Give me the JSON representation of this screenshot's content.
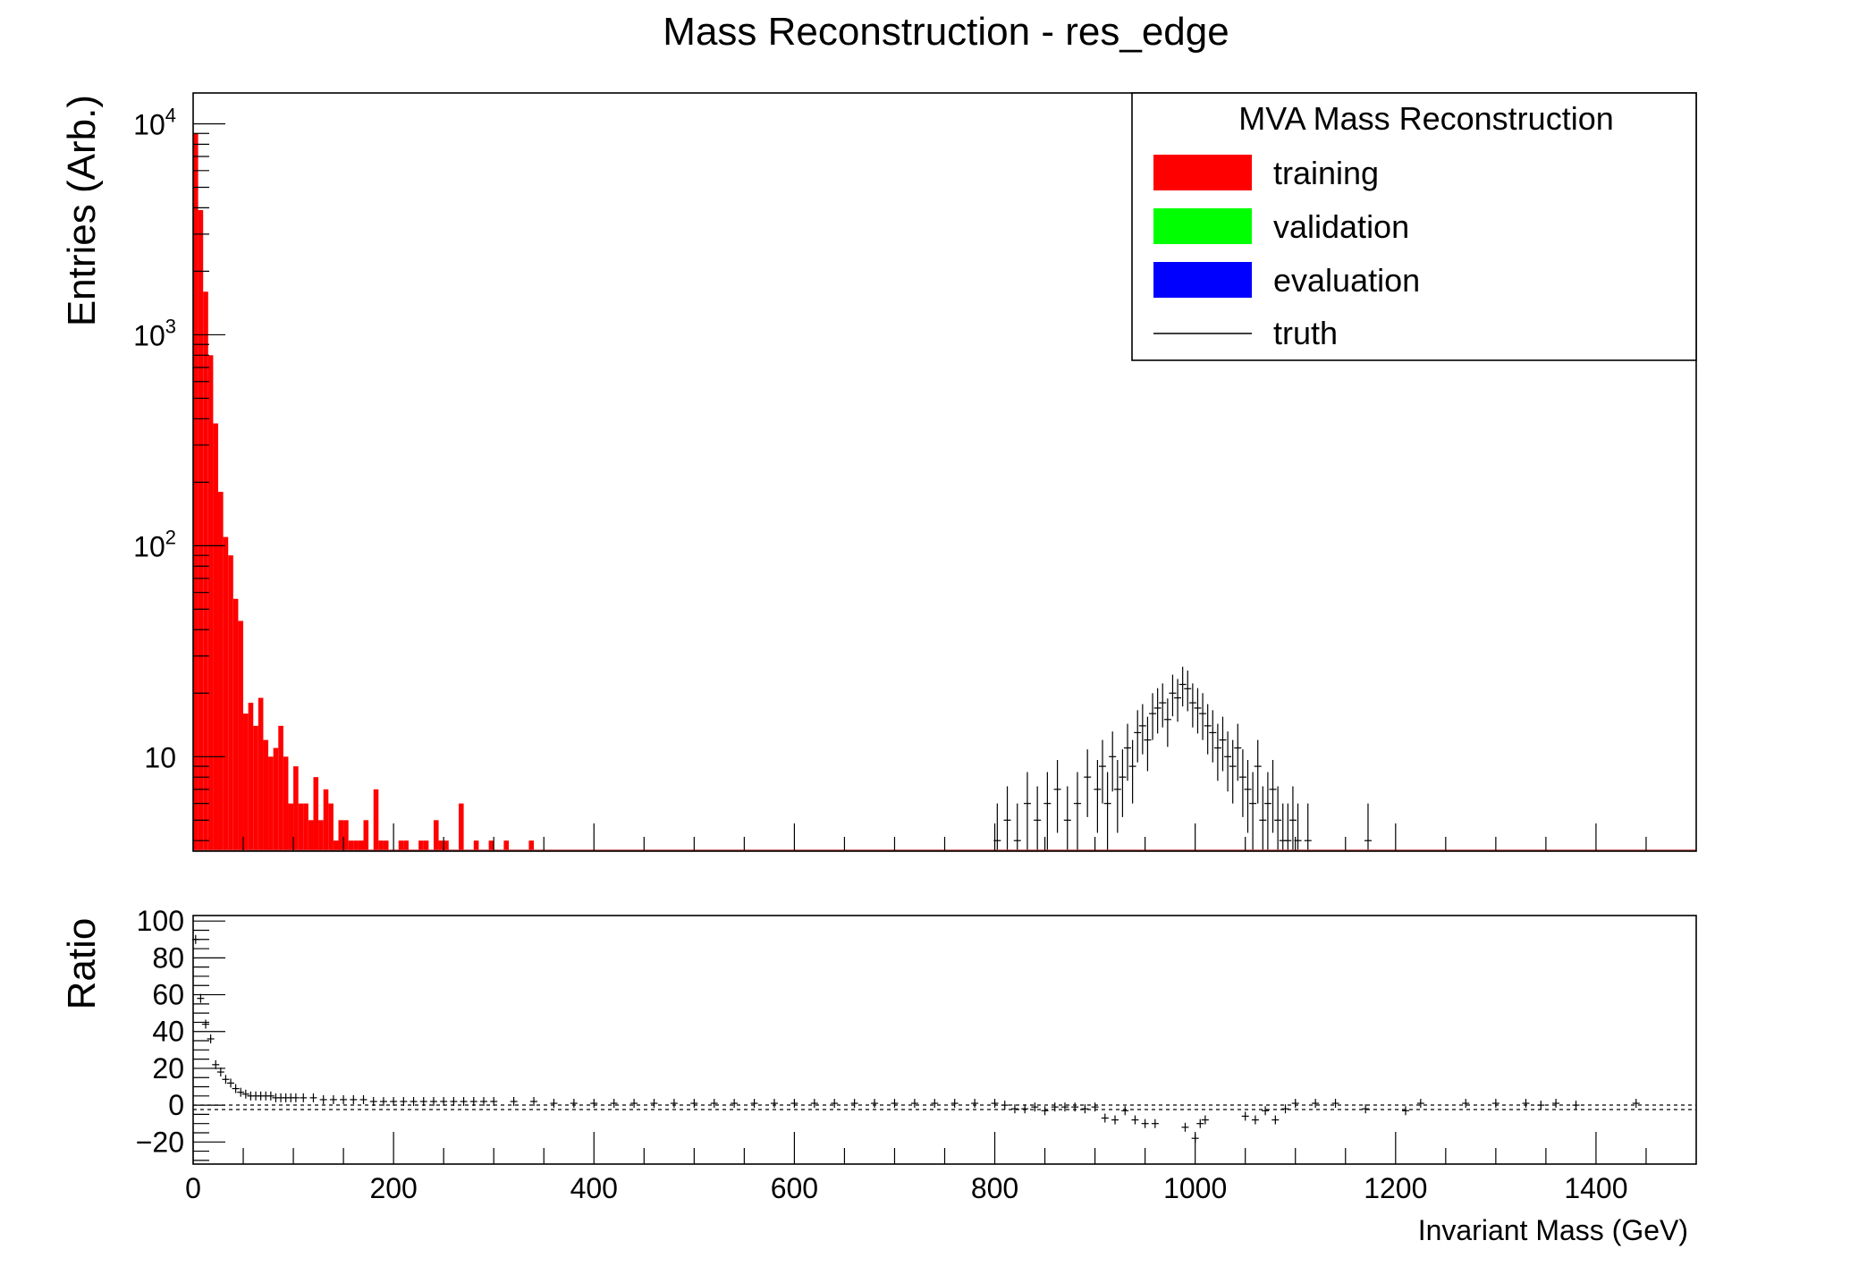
{
  "chart_data": [
    {
      "type": "bar",
      "title": "Mass Reconstruction - res_edge",
      "ylabel": "Entries (Arb.)",
      "xlabel": "",
      "log_y": true,
      "ylim": [
        3.6,
        14000
      ],
      "xlim": [
        0,
        1500
      ],
      "y_tick_labels": [
        {
          "value": 10000,
          "base": "10",
          "exp": "4"
        },
        {
          "value": 1000,
          "base": "10",
          "exp": "3"
        },
        {
          "value": 100,
          "base": "10",
          "exp": "2"
        },
        {
          "value": 10,
          "base": "10",
          "exp": ""
        }
      ],
      "legend": {
        "title": "MVA Mass Reconstruction",
        "position": "top-right",
        "entries": [
          {
            "label": "training",
            "style": "fill",
            "color": "#ff0000"
          },
          {
            "label": "validation",
            "style": "fill",
            "color": "#00ff00"
          },
          {
            "label": "evaluation",
            "style": "fill",
            "color": "#0000ff"
          },
          {
            "label": "truth",
            "style": "line",
            "color": "#000000"
          }
        ]
      },
      "series": [
        {
          "name": "training",
          "color": "#ff0000",
          "bin_width": 5,
          "x": [
            0,
            5,
            10,
            15,
            20,
            25,
            30,
            35,
            40,
            45,
            50,
            55,
            60,
            65,
            70,
            75,
            80,
            85,
            90,
            95,
            100,
            105,
            110,
            115,
            120,
            125,
            130,
            135,
            140,
            145,
            150,
            155,
            160,
            165,
            170,
            175,
            180,
            185,
            190,
            195,
            200,
            205,
            210,
            215,
            220,
            225,
            230,
            235,
            240,
            245,
            250,
            255,
            260,
            265,
            270,
            275,
            280,
            285,
            290,
            295,
            300,
            305,
            310,
            315,
            320,
            325,
            330,
            335,
            340,
            345,
            350,
            355,
            360,
            365,
            370,
            375,
            380,
            385,
            390,
            395,
            400,
            405,
            410,
            415,
            420,
            425,
            430,
            435,
            440,
            445,
            450,
            455,
            460,
            465,
            470,
            475,
            480,
            485,
            490,
            495,
            500,
            505,
            510,
            515,
            520,
            525,
            530,
            535,
            540,
            545,
            550,
            555,
            560,
            565,
            570
          ],
          "values": [
            9000,
            3900,
            1600,
            800,
            380,
            180,
            110,
            90,
            56,
            44,
            16,
            18,
            14,
            19,
            12,
            10,
            11,
            14,
            10,
            6,
            9,
            6,
            6,
            5,
            8,
            5,
            7,
            6,
            4,
            5,
            5,
            4,
            4,
            4,
            5,
            3,
            7,
            4,
            4,
            3,
            3,
            4,
            4,
            3,
            3,
            4,
            4,
            3,
            5,
            4,
            4,
            3,
            3,
            6,
            3,
            3,
            4,
            3,
            3,
            4,
            3,
            3,
            4,
            3,
            3,
            3,
            3,
            4,
            3,
            3,
            3,
            3,
            3,
            3,
            3,
            3,
            3,
            3,
            3,
            3,
            3,
            3,
            3,
            3,
            3,
            3,
            3,
            3,
            3,
            3,
            3,
            3,
            3,
            3,
            3,
            3,
            3,
            3,
            3,
            3,
            3,
            3,
            3,
            3,
            3,
            3,
            3,
            3,
            3,
            3,
            3,
            3,
            3,
            3,
            3
          ]
        },
        {
          "name": "truth",
          "color": "#000000",
          "bin_width": 5,
          "x": [
            800,
            810,
            820,
            830,
            840,
            850,
            860,
            870,
            880,
            890,
            900,
            905,
            910,
            915,
            920,
            925,
            930,
            935,
            940,
            945,
            950,
            955,
            960,
            965,
            970,
            975,
            980,
            985,
            990,
            995,
            1000,
            1005,
            1010,
            1015,
            1020,
            1025,
            1030,
            1035,
            1040,
            1045,
            1050,
            1055,
            1060,
            1065,
            1070,
            1075,
            1080,
            1085,
            1090,
            1095,
            1100,
            1110,
            1170
          ],
          "values": [
            4,
            5,
            4,
            6,
            5,
            6,
            7,
            5,
            6,
            8,
            7,
            9,
            6,
            10,
            7,
            8,
            11,
            9,
            13,
            14,
            12,
            16,
            17,
            18,
            15,
            20,
            19,
            22,
            21,
            18,
            17,
            16,
            14,
            13,
            11,
            12,
            10,
            9,
            11,
            8,
            7,
            6,
            9,
            5,
            6,
            7,
            5,
            4,
            4,
            5,
            4,
            4,
            4
          ]
        }
      ]
    },
    {
      "type": "scatter",
      "xlabel": "Invariant Mass (GeV)",
      "ylabel": "Ratio",
      "xlim": [
        0,
        1500
      ],
      "ylim": [
        -32,
        103
      ],
      "x_tick_labels": [
        "0",
        "200",
        "400",
        "600",
        "800",
        "1000",
        "1200",
        "1400"
      ],
      "y_tick_labels": [
        "100",
        "80",
        "60",
        "40",
        "20",
        "0",
        "−20"
      ],
      "reference_line": 0,
      "series": [
        {
          "name": "",
          "color": "#000000",
          "x": [
            2.5,
            7.5,
            12.5,
            17.5,
            22.5,
            27.5,
            32.5,
            37.5,
            42.5,
            47.5,
            52.5,
            57.5,
            62.5,
            67.5,
            72.5,
            77.5,
            82.5,
            87.5,
            92.5,
            97.5,
            102.5,
            110,
            120,
            130,
            140,
            150,
            160,
            170,
            180,
            190,
            200,
            210,
            220,
            230,
            240,
            250,
            260,
            270,
            280,
            290,
            300,
            320,
            340,
            360,
            380,
            400,
            420,
            440,
            460,
            480,
            500,
            520,
            540,
            560,
            580,
            600,
            620,
            640,
            660,
            680,
            700,
            720,
            740,
            760,
            780,
            800,
            810,
            820,
            830,
            840,
            850,
            860,
            870,
            880,
            890,
            900,
            910,
            920,
            930,
            940,
            950,
            960,
            990,
            1000,
            1005,
            1010,
            1050,
            1060,
            1070,
            1080,
            1090,
            1100,
            1120,
            1140,
            1170,
            1210,
            1225,
            1270,
            1300,
            1330,
            1345,
            1360,
            1380,
            1440
          ],
          "values": [
            90,
            58,
            44,
            36,
            22,
            18,
            14,
            12,
            9,
            7,
            6,
            5,
            5,
            5,
            5,
            5,
            4,
            4,
            4,
            4,
            4,
            4,
            4,
            3,
            3,
            3,
            3,
            3,
            2,
            2,
            2,
            2,
            2,
            2,
            2,
            2,
            2,
            2,
            2,
            2,
            2,
            2,
            2,
            1,
            1,
            1,
            1,
            1,
            1,
            1,
            1,
            1,
            1,
            1,
            1,
            1,
            1,
            1,
            1,
            1,
            1,
            1,
            1,
            1,
            1,
            1,
            0,
            -2,
            -2,
            -1,
            -3,
            -1,
            -1,
            -1,
            -2,
            -1,
            -7,
            -8,
            -3,
            -8,
            -10,
            -10,
            -12,
            -18,
            -10,
            -8,
            -6,
            -8,
            -3,
            -8,
            -2,
            1,
            1,
            1,
            -2,
            -3,
            1,
            1,
            1,
            1,
            0,
            1,
            0,
            1
          ]
        }
      ]
    }
  ]
}
